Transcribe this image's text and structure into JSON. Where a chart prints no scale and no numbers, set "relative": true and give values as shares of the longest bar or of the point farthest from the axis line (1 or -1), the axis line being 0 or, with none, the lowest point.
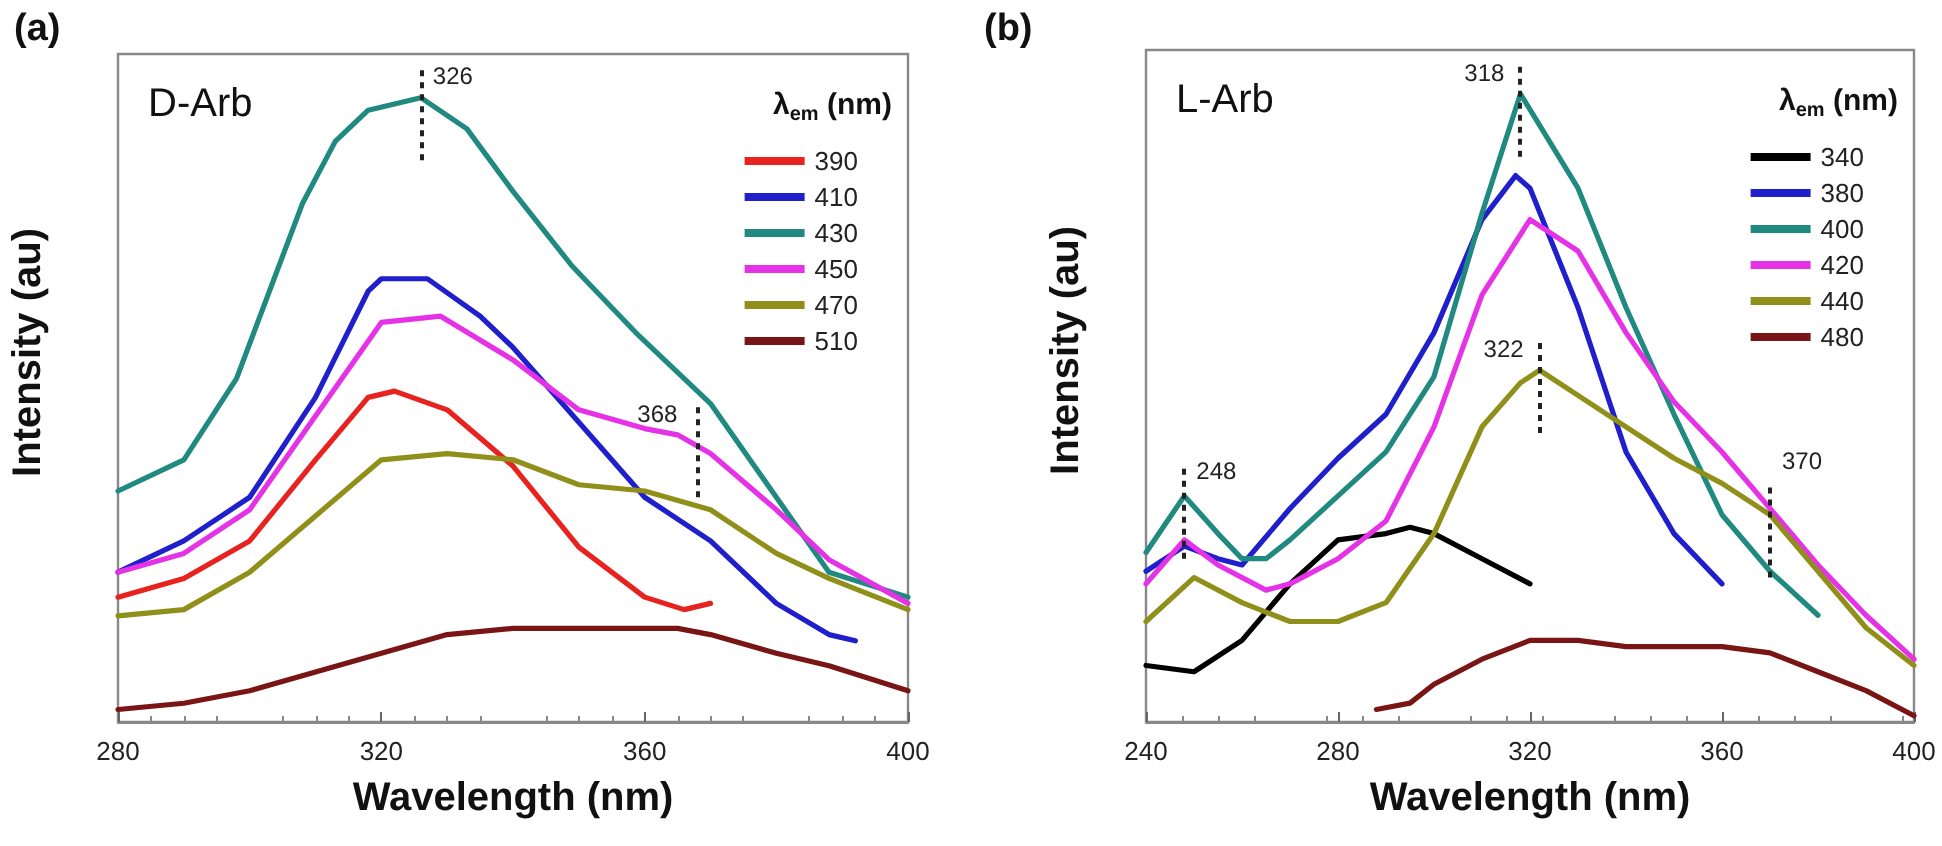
{
  "chart_data": [
    {
      "type": "line",
      "title": "(a)",
      "subtitle": "D-Arb",
      "xlabel": "Wavelength (nm)",
      "ylabel": "Intensity (au)",
      "legend_title": "λ$_{em}$ (nm)",
      "legend": "top right",
      "relative": true,
      "xlim": [
        280,
        400
      ],
      "xticks": [
        280,
        320,
        360,
        400
      ],
      "marker": "none",
      "line_style": "solid",
      "grid": false,
      "annotations": [
        {
          "text": "326",
          "x": 326,
          "y": 1.0
        },
        {
          "text": "368",
          "x": 368,
          "y": 0.46
        }
      ],
      "series": [
        {
          "name": "390",
          "color": "#e8231f",
          "x": [
            280,
            290,
            300,
            310,
            318,
            322,
            330,
            340,
            350,
            360,
            366,
            370
          ],
          "values": [
            0.2,
            0.23,
            0.29,
            0.42,
            0.52,
            0.53,
            0.5,
            0.41,
            0.28,
            0.2,
            0.18,
            0.19
          ]
        },
        {
          "name": "410",
          "color": "#1f1fcc",
          "x": [
            280,
            290,
            300,
            310,
            318,
            320,
            327,
            335,
            340,
            350,
            360,
            370,
            380,
            388,
            392
          ],
          "values": [
            0.24,
            0.29,
            0.36,
            0.52,
            0.69,
            0.71,
            0.71,
            0.65,
            0.6,
            0.48,
            0.36,
            0.29,
            0.19,
            0.14,
            0.13
          ]
        },
        {
          "name": "430",
          "color": "#208a80",
          "x": [
            280,
            290,
            298,
            308,
            313,
            318,
            326,
            333,
            340,
            349,
            359,
            370,
            380,
            388,
            400
          ],
          "values": [
            0.37,
            0.42,
            0.55,
            0.83,
            0.93,
            0.98,
            1.0,
            0.95,
            0.85,
            0.73,
            0.62,
            0.51,
            0.36,
            0.24,
            0.2
          ]
        },
        {
          "name": "450",
          "color": "#e632e6",
          "x": [
            280,
            290,
            300,
            310,
            320,
            329,
            340,
            350,
            360,
            365,
            370,
            380,
            388,
            400
          ],
          "values": [
            0.24,
            0.27,
            0.34,
            0.49,
            0.64,
            0.65,
            0.58,
            0.5,
            0.47,
            0.46,
            0.43,
            0.34,
            0.26,
            0.19
          ]
        },
        {
          "name": "470",
          "color": "#8f8f1a",
          "x": [
            280,
            290,
            300,
            310,
            320,
            330,
            340,
            350,
            360,
            370,
            380,
            388,
            400
          ],
          "values": [
            0.17,
            0.18,
            0.24,
            0.33,
            0.42,
            0.43,
            0.42,
            0.38,
            0.37,
            0.34,
            0.27,
            0.23,
            0.18
          ]
        },
        {
          "name": "510",
          "color": "#7a1515",
          "x": [
            280,
            290,
            300,
            310,
            320,
            330,
            340,
            350,
            360,
            365,
            370,
            380,
            388,
            400
          ],
          "values": [
            0.02,
            0.03,
            0.05,
            0.08,
            0.11,
            0.14,
            0.15,
            0.15,
            0.15,
            0.15,
            0.14,
            0.11,
            0.09,
            0.05
          ]
        }
      ]
    },
    {
      "type": "line",
      "title": "(b)",
      "subtitle": "L-Arb",
      "xlabel": "Wavelength (nm)",
      "ylabel": "Intensity (au)",
      "legend_title": "λ$_{em}$ (nm)",
      "legend": "top right",
      "relative": true,
      "xlim": [
        240,
        400
      ],
      "xticks": [
        240,
        280,
        320,
        360,
        400
      ],
      "marker": "none",
      "line_style": "solid",
      "grid": false,
      "annotations": [
        {
          "text": "318",
          "x": 318,
          "y": 1.0
        },
        {
          "text": "248",
          "x": 248,
          "y": 0.36
        },
        {
          "text": "322",
          "x": 322,
          "y": 0.56
        },
        {
          "text": "370",
          "x": 370,
          "y": 0.33
        }
      ],
      "series": [
        {
          "name": "340",
          "color": "#000000",
          "x": [
            240,
            250,
            260,
            270,
            280,
            290,
            295,
            300,
            310,
            320
          ],
          "values": [
            0.09,
            0.08,
            0.13,
            0.22,
            0.29,
            0.3,
            0.31,
            0.3,
            0.26,
            0.22
          ]
        },
        {
          "name": "380",
          "color": "#1f1fcc",
          "x": [
            240,
            248,
            255,
            260,
            270,
            280,
            290,
            300,
            310,
            317,
            320,
            330,
            340,
            350,
            360
          ],
          "values": [
            0.24,
            0.28,
            0.26,
            0.25,
            0.34,
            0.42,
            0.49,
            0.62,
            0.8,
            0.87,
            0.85,
            0.66,
            0.43,
            0.3,
            0.22
          ]
        },
        {
          "name": "400",
          "color": "#208a80",
          "x": [
            240,
            248,
            255,
            260,
            265,
            270,
            280,
            290,
            300,
            310,
            318,
            330,
            340,
            350,
            360,
            370,
            380
          ],
          "values": [
            0.27,
            0.36,
            0.3,
            0.26,
            0.26,
            0.29,
            0.36,
            0.43,
            0.55,
            0.81,
            1.0,
            0.85,
            0.66,
            0.49,
            0.33,
            0.24,
            0.17
          ]
        },
        {
          "name": "420",
          "color": "#e632e6",
          "x": [
            240,
            248,
            255,
            265,
            270,
            280,
            290,
            300,
            310,
            320,
            330,
            340,
            350,
            360,
            370,
            380,
            390,
            400
          ],
          "values": [
            0.22,
            0.29,
            0.25,
            0.21,
            0.22,
            0.26,
            0.32,
            0.47,
            0.68,
            0.8,
            0.75,
            0.62,
            0.51,
            0.43,
            0.34,
            0.25,
            0.17,
            0.1
          ]
        },
        {
          "name": "440",
          "color": "#8f8f1a",
          "x": [
            240,
            250,
            260,
            270,
            280,
            290,
            300,
            310,
            318,
            322,
            330,
            340,
            350,
            360,
            370,
            380,
            390,
            400
          ],
          "values": [
            0.16,
            0.23,
            0.19,
            0.16,
            0.16,
            0.19,
            0.3,
            0.47,
            0.54,
            0.56,
            0.52,
            0.47,
            0.42,
            0.38,
            0.33,
            0.24,
            0.15,
            0.09
          ]
        },
        {
          "name": "480",
          "color": "#7a1515",
          "x": [
            288,
            295,
            300,
            310,
            320,
            330,
            340,
            350,
            360,
            370,
            380,
            390,
            400
          ],
          "values": [
            0.02,
            0.03,
            0.06,
            0.1,
            0.13,
            0.13,
            0.12,
            0.12,
            0.12,
            0.11,
            0.08,
            0.05,
            0.01
          ]
        }
      ]
    }
  ]
}
